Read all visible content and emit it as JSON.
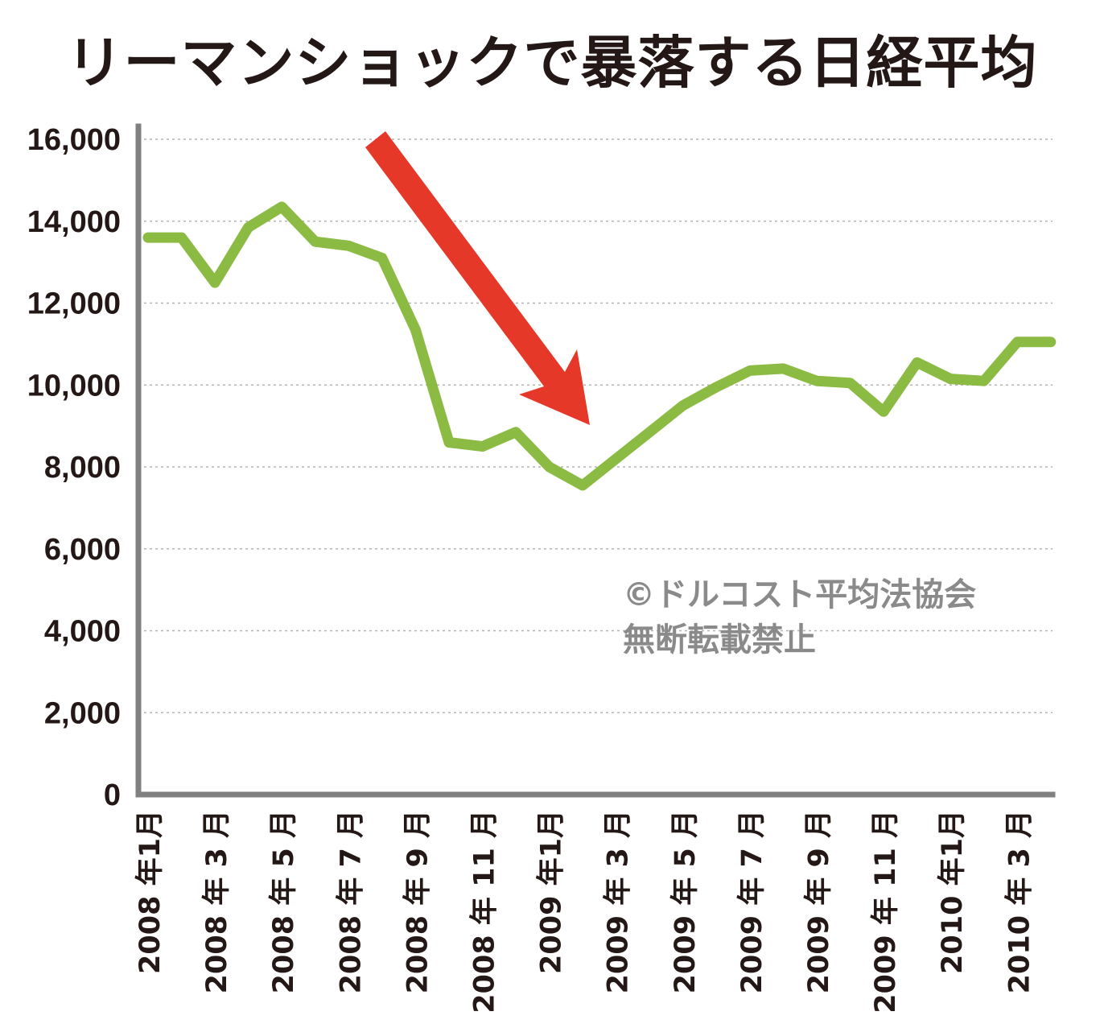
{
  "chart_data": {
    "type": "line",
    "title": "リーマンショックで暴落する日経平均",
    "xlabel": "",
    "ylabel": "",
    "ylim": [
      0,
      16000
    ],
    "yticks": [
      0,
      2000,
      4000,
      6000,
      8000,
      10000,
      12000,
      14000,
      16000
    ],
    "ytick_labels": [
      "0",
      "2,000",
      "4,000",
      "6,000",
      "8,000",
      "10,000",
      "12,000",
      "14,000",
      "16,000"
    ],
    "x_labels": [
      "2008 年1月",
      "2008 年 3 月",
      "2008 年 5 月",
      "2008 年 7 月",
      "2008 年 9 月",
      "2008 年 11 月",
      "2009 年1月",
      "2009 年 3 月",
      "2009 年 5 月",
      "2009 年 7 月",
      "2009 年 9 月",
      "2009 年 11 月",
      "2010 年1月",
      "2010 年 3 月"
    ],
    "grid": true,
    "series": [
      {
        "color": "#8bbb43",
        "x": [
          "2008-01",
          "2008-02",
          "2008-03",
          "2008-04",
          "2008-05",
          "2008-06",
          "2008-07",
          "2008-08",
          "2008-09",
          "2008-10",
          "2008-11",
          "2008-12",
          "2009-01",
          "2009-02",
          "2009-03",
          "2009-04",
          "2009-05",
          "2009-06",
          "2009-07",
          "2009-08",
          "2009-09",
          "2009-10",
          "2009-11",
          "2009-12",
          "2010-01",
          "2010-02",
          "2010-03",
          "2010-04"
        ],
        "values": [
          13600,
          13600,
          12500,
          13850,
          14350,
          13500,
          13400,
          13100,
          11350,
          8600,
          8500,
          8850,
          8000,
          7550,
          8200,
          8850,
          9500,
          9950,
          10350,
          10400,
          10100,
          10050,
          9350,
          10550,
          10150,
          10100,
          11050,
          11050
        ]
      }
    ],
    "arrow_color": "#e53828",
    "watermark": [
      "©ドルコスト平均法協会",
      "無断転載禁止"
    ]
  }
}
